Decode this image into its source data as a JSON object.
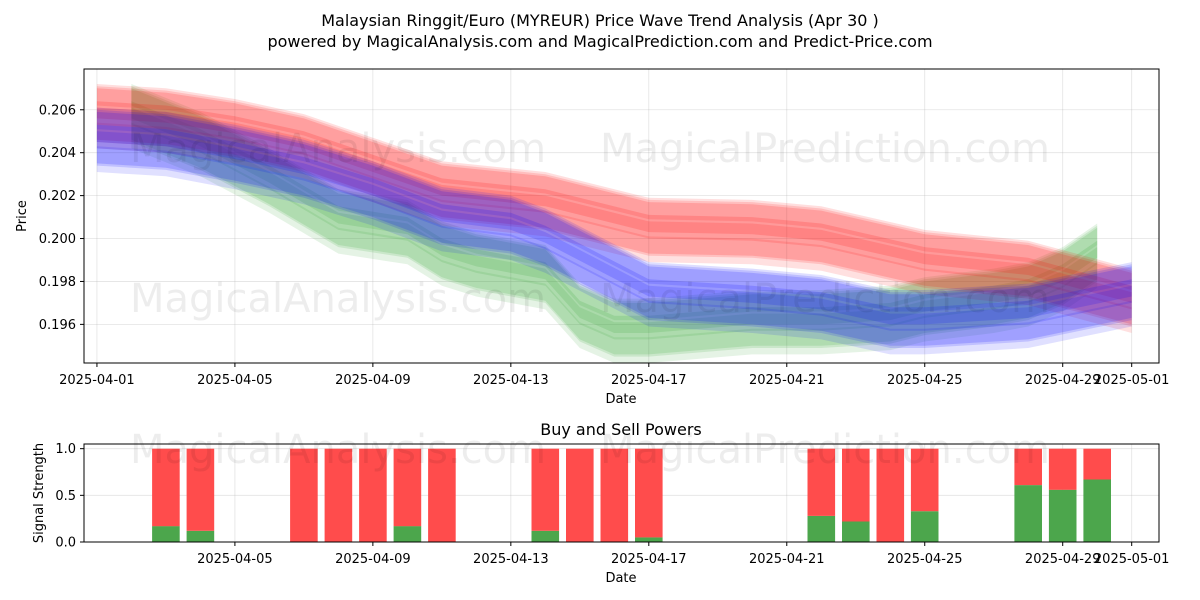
{
  "chart_data": [
    {
      "type": "area",
      "title": "Malaysian Ringgit/Euro (MYREUR) Price Wave Trend Analysis (Apr 30 )",
      "subtitle": "powered by MagicalAnalysis.com and MagicalPrediction.com and Predict-Price.com",
      "xlabel": "Date",
      "ylabel": "Price",
      "x_ticks": [
        "2025-04-01",
        "2025-04-05",
        "2025-04-09",
        "2025-04-13",
        "2025-04-17",
        "2025-04-21",
        "2025-04-25",
        "2025-04-29",
        "2025-05-01"
      ],
      "y_ticks": [
        "0.196",
        "0.198",
        "0.200",
        "0.202",
        "0.204",
        "0.206"
      ],
      "xlim": [
        "2025-03-31T15:00",
        "2025-05-01T19:00"
      ],
      "ylim": [
        0.1942,
        0.2079
      ],
      "grid": true,
      "series": [
        {
          "color": "#2ca02c",
          "x": [
            "2025-04-02",
            "2025-04-04",
            "2025-04-06",
            "2025-04-08",
            "2025-04-10",
            "2025-04-11",
            "2025-04-12",
            "2025-04-14",
            "2025-04-15",
            "2025-04-16",
            "2025-04-17",
            "2025-04-20",
            "2025-04-22",
            "2025-04-24",
            "2025-04-25",
            "2025-04-27",
            "2025-04-28",
            "2025-04-29",
            "2025-04-30"
          ],
          "values": [
            0.2058,
            0.2045,
            0.2028,
            0.2009,
            0.2004,
            0.1994,
            0.1989,
            0.1983,
            0.1965,
            0.1958,
            0.1958,
            0.1962,
            0.1962,
            0.1964,
            0.1968,
            0.1972,
            0.1975,
            0.1982,
            0.1993
          ]
        },
        {
          "color": "#ff0000",
          "x": [
            "2025-04-01",
            "2025-04-03",
            "2025-04-05",
            "2025-04-07",
            "2025-04-09",
            "2025-04-11",
            "2025-04-14",
            "2025-04-17",
            "2025-04-20",
            "2025-04-22",
            "2025-04-25",
            "2025-04-28",
            "2025-05-01"
          ],
          "values": [
            0.2058,
            0.2056,
            0.2051,
            0.2044,
            0.2033,
            0.2022,
            0.2017,
            0.2005,
            0.2004,
            0.2001,
            0.199,
            0.1985,
            0.1972
          ]
        },
        {
          "color": "#0000ff",
          "x": [
            "2025-04-01",
            "2025-04-03",
            "2025-04-05",
            "2025-04-07",
            "2025-04-09",
            "2025-04-11",
            "2025-04-13",
            "2025-04-14",
            "2025-04-17",
            "2025-04-20",
            "2025-04-22",
            "2025-04-24",
            "2025-04-25",
            "2025-04-28",
            "2025-05-01"
          ],
          "values": [
            0.2047,
            0.2045,
            0.2039,
            0.2032,
            0.2022,
            0.201,
            0.2006,
            0.2,
            0.1975,
            0.1972,
            0.1969,
            0.1962,
            0.1962,
            0.1965,
            0.1975
          ]
        }
      ]
    },
    {
      "type": "bar",
      "title": "Buy and Sell Powers",
      "xlabel": "Date",
      "ylabel": "Signal Strength",
      "x_ticks": [
        "2025-04-05",
        "2025-04-09",
        "2025-04-13",
        "2025-04-17",
        "2025-04-21",
        "2025-04-25",
        "2025-04-29",
        "2025-05-01"
      ],
      "y_ticks": [
        "0.0",
        "0.5",
        "1.0"
      ],
      "ylim": [
        0,
        1.05
      ],
      "grid": true,
      "series": [
        {
          "color": "#4ca64c",
          "dates": [
            "2025-04-03",
            "2025-04-04",
            "2025-04-07",
            "2025-04-08",
            "2025-04-09",
            "2025-04-10",
            "2025-04-11",
            "2025-04-14",
            "2025-04-15",
            "2025-04-16",
            "2025-04-17",
            "2025-04-22",
            "2025-04-23",
            "2025-04-24",
            "2025-04-25",
            "2025-04-28",
            "2025-04-29",
            "2025-04-30"
          ],
          "values": [
            0.17,
            0.12,
            0.0,
            0.0,
            0.0,
            0.17,
            0.0,
            0.12,
            0.0,
            0.0,
            0.05,
            0.28,
            0.22,
            0.0,
            0.33,
            0.61,
            0.56,
            0.67
          ]
        },
        {
          "color": "#ff4c4c",
          "dates": [
            "2025-04-03",
            "2025-04-04",
            "2025-04-07",
            "2025-04-08",
            "2025-04-09",
            "2025-04-10",
            "2025-04-11",
            "2025-04-14",
            "2025-04-15",
            "2025-04-16",
            "2025-04-17",
            "2025-04-22",
            "2025-04-23",
            "2025-04-24",
            "2025-04-25",
            "2025-04-28",
            "2025-04-29",
            "2025-04-30"
          ],
          "values": [
            0.83,
            0.88,
            1.0,
            1.0,
            1.0,
            0.83,
            1.0,
            0.88,
            1.0,
            1.0,
            0.95,
            0.72,
            0.78,
            1.0,
            0.67,
            0.39,
            0.44,
            0.33
          ]
        }
      ]
    }
  ],
  "watermarks": {
    "analysis": "MagicalAnalysis.com",
    "prediction": "MagicalPrediction.com"
  }
}
